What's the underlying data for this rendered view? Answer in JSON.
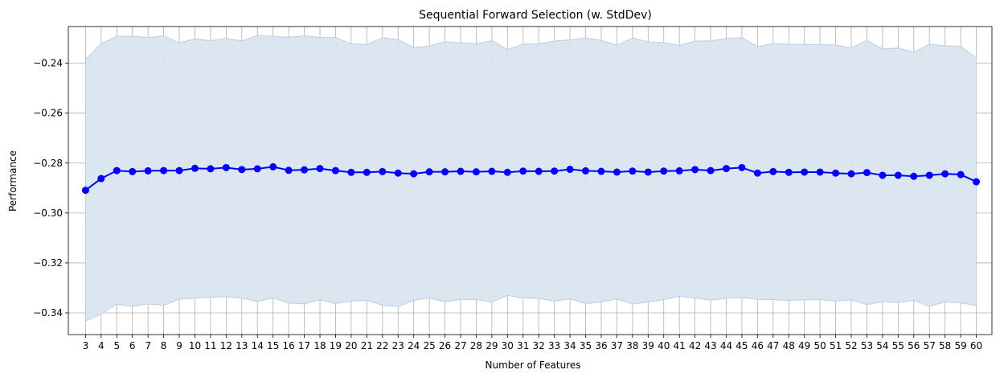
{
  "chart_data": {
    "type": "line",
    "title": "Sequential Forward Selection (w. StdDev)",
    "xlabel": "Number of Features",
    "ylabel": "Performance",
    "x": [
      3,
      4,
      5,
      6,
      7,
      8,
      9,
      10,
      11,
      12,
      13,
      14,
      15,
      16,
      17,
      18,
      19,
      20,
      21,
      22,
      23,
      24,
      25,
      26,
      27,
      28,
      29,
      30,
      31,
      32,
      33,
      34,
      35,
      36,
      37,
      38,
      39,
      40,
      41,
      42,
      43,
      44,
      45,
      46,
      47,
      48,
      49,
      50,
      51,
      52,
      53,
      54,
      55,
      56,
      57,
      58,
      59,
      60
    ],
    "series": [
      {
        "values": [
          -0.2909,
          -0.2862,
          -0.283,
          -0.2834,
          -0.2831,
          -0.283,
          -0.283,
          -0.2821,
          -0.2823,
          -0.2818,
          -0.2826,
          -0.2823,
          -0.2815,
          -0.2829,
          -0.2827,
          -0.2822,
          -0.283,
          -0.2837,
          -0.2837,
          -0.2834,
          -0.284,
          -0.2843,
          -0.2835,
          -0.2835,
          -0.2833,
          -0.2835,
          -0.2833,
          -0.2837,
          -0.2832,
          -0.2833,
          -0.2832,
          -0.2825,
          -0.2831,
          -0.2833,
          -0.2836,
          -0.2832,
          -0.2836,
          -0.2832,
          -0.2831,
          -0.2826,
          -0.283,
          -0.2822,
          -0.2818,
          -0.284,
          -0.2834,
          -0.2837,
          -0.2836,
          -0.2836,
          -0.284,
          -0.2843,
          -0.2838,
          -0.2849,
          -0.2849,
          -0.2853,
          -0.2849,
          -0.2843,
          -0.2846,
          -0.2875
        ],
        "upper": [
          -0.2385,
          -0.2322,
          -0.2292,
          -0.2292,
          -0.2297,
          -0.229,
          -0.2318,
          -0.2302,
          -0.231,
          -0.23,
          -0.2311,
          -0.2289,
          -0.2292,
          -0.2296,
          -0.229,
          -0.2297,
          -0.2297,
          -0.2322,
          -0.2325,
          -0.2298,
          -0.2305,
          -0.2337,
          -0.2331,
          -0.2314,
          -0.2318,
          -0.2323,
          -0.2309,
          -0.2346,
          -0.2323,
          -0.2323,
          -0.2311,
          -0.2306,
          -0.2299,
          -0.2308,
          -0.2328,
          -0.2299,
          -0.2314,
          -0.2318,
          -0.2329,
          -0.2311,
          -0.2311,
          -0.2301,
          -0.2297,
          -0.2334,
          -0.2321,
          -0.2324,
          -0.2325,
          -0.2325,
          -0.2327,
          -0.2339,
          -0.2309,
          -0.2343,
          -0.2339,
          -0.2356,
          -0.2324,
          -0.233,
          -0.2332,
          -0.2379
        ],
        "lower": [
          -0.3432,
          -0.3405,
          -0.3365,
          -0.3374,
          -0.3364,
          -0.337,
          -0.3345,
          -0.3341,
          -0.3337,
          -0.3335,
          -0.3341,
          -0.3355,
          -0.334,
          -0.3361,
          -0.3364,
          -0.3347,
          -0.3363,
          -0.3353,
          -0.335,
          -0.3369,
          -0.3375,
          -0.335,
          -0.334,
          -0.3356,
          -0.3346,
          -0.3347,
          -0.3357,
          -0.333,
          -0.3341,
          -0.3342,
          -0.3353,
          -0.3344,
          -0.3363,
          -0.3357,
          -0.3344,
          -0.3365,
          -0.3357,
          -0.3347,
          -0.3333,
          -0.3341,
          -0.3349,
          -0.3342,
          -0.3339,
          -0.3346,
          -0.3347,
          -0.335,
          -0.3348,
          -0.3347,
          -0.3353,
          -0.3348,
          -0.3367,
          -0.3355,
          -0.3359,
          -0.335,
          -0.3374,
          -0.3356,
          -0.336,
          -0.3371
        ]
      }
    ],
    "yticks": [
      -0.34,
      -0.32,
      -0.3,
      -0.28,
      -0.26,
      -0.24
    ],
    "ytick_labels": [
      "−0.34",
      "−0.32",
      "−0.30",
      "−0.28",
      "−0.26",
      "−0.24"
    ],
    "ylim": [
      -0.3487,
      -0.2253
    ],
    "xlim": [
      1.9,
      61.0
    ],
    "grid": true,
    "colors": {
      "line": "#0000ff",
      "marker": "#0000ff",
      "band_fill": "#dae5ef",
      "band_edge": "#b9cfe3",
      "grid": "#b0b0b0",
      "spine": "#000000"
    }
  }
}
